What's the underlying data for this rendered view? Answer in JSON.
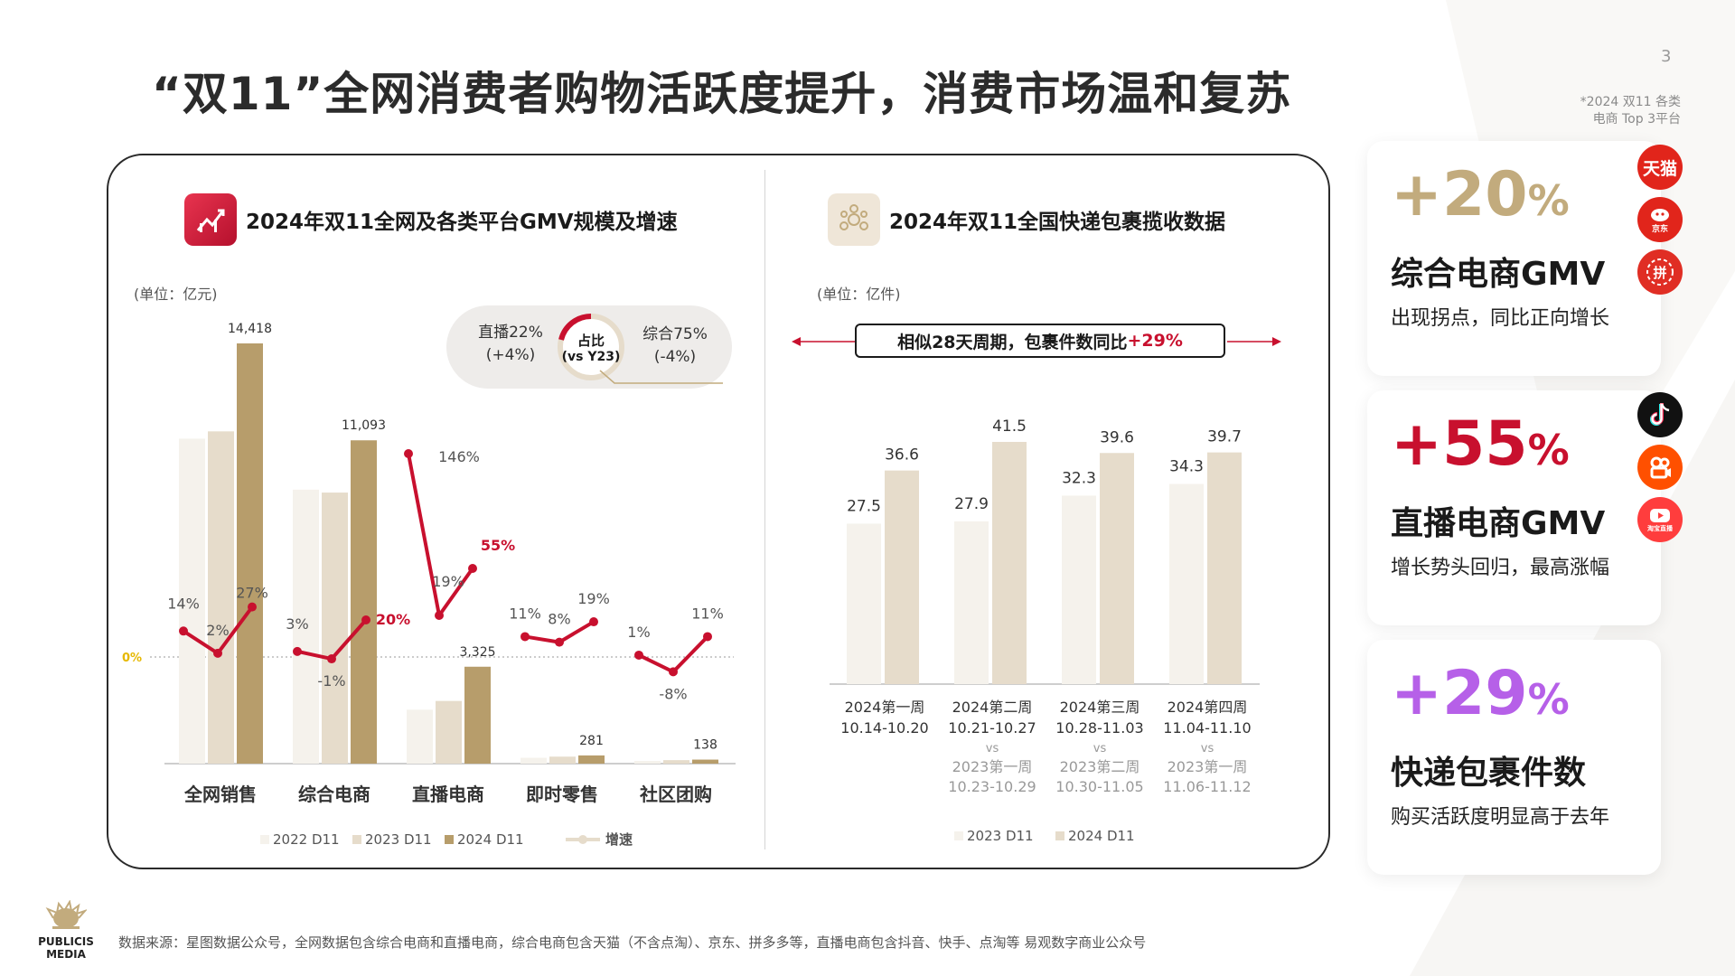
{
  "page": {
    "title": "“双11”全网消费者购物活跃度提升，消费市场温和复苏",
    "page_number": "3",
    "footnote_line1": "*2024 双11 各类",
    "footnote_line2": "电商 Top 3平台"
  },
  "left_panel": {
    "title": "2024年双11全网及各类平台GMV规模及增速",
    "unit": "(单位：亿元)",
    "pill": {
      "left_line1": "直播22%",
      "left_line2": "(+4%)",
      "center_line1": "占比",
      "center_line2": "(vs Y23)",
      "right_line1": "综合75%",
      "right_line2": "(-4%)"
    }
  },
  "right_panel": {
    "title": "2024年双11全国快递包裹揽收数据",
    "unit": "(单位：亿件)",
    "banner_text": "相似28天周期，包裹件数同比",
    "banner_highlight": "+29%"
  },
  "stats": [
    {
      "number": "+20",
      "pct": "%",
      "color": "#c2ab7d",
      "label": "综合电商GMV",
      "desc": "出现拐点，同比正向增长"
    },
    {
      "number": "+55",
      "pct": "%",
      "color": "#c8102e",
      "label": "直播电商GMV",
      "desc": "增长势头回归，最高涨幅"
    },
    {
      "number": "+29",
      "pct": "%",
      "color": "#b660e8",
      "label": "快递包裹件数",
      "desc": "购买活跃度明显高于去年"
    }
  ],
  "logos": {
    "tmall": "天猫",
    "jd": "京东",
    "pdd": "拼",
    "taobao_live": "淘宝直播"
  },
  "brand": {
    "line1": "PUBLICIS",
    "line2": "MEDIA"
  },
  "source": "数据来源：星图数据公众号，全网数据包含综合电商和直播电商，综合电商包含天猫（不含点淘）、京东、拼多多等，直播电商包含抖音、快手、点淘等 易观数字商业公众号",
  "colors": {
    "c2022": "#f5f2ec",
    "c2023": "#e6dccb",
    "c2024": "#b79d6b",
    "growth_line": "#c8102e",
    "zero_label": "#e6b800"
  },
  "chart_data": [
    {
      "type": "bar",
      "title": "2024年双11全网及各类平台GMV规模及增速",
      "unit": "(单位：亿元)",
      "categories": [
        "全网销售",
        "综合电商",
        "直播电商",
        "即时零售",
        "社区团购"
      ],
      "series": [
        {
          "name": "2022 D11",
          "values": [
            11150,
            9400,
            1850,
            200,
            60
          ]
        },
        {
          "name": "2023 D11",
          "values": [
            11400,
            9300,
            2150,
            240,
            120
          ]
        },
        {
          "name": "2024 D11",
          "values": [
            14418,
            11093,
            3325,
            281,
            138
          ]
        }
      ],
      "bar_value_labels": [
        "14,418",
        "11,093",
        "3,325",
        "281",
        "138"
      ],
      "growth_series": {
        "name": "增速",
        "values": [
          [
            14,
            2,
            27
          ],
          [
            3,
            -1,
            20
          ],
          [
            146,
            19,
            55
          ],
          [
            11,
            8,
            19
          ],
          [
            1,
            -8,
            11
          ]
        ],
        "labels": [
          [
            "14%",
            "2%",
            "27%"
          ],
          [
            "3%",
            "-1%",
            "20%"
          ],
          [
            "146%",
            "19%",
            "55%"
          ],
          [
            "11%",
            "8%",
            "19%"
          ],
          [
            "1%",
            "-8%",
            "11%"
          ]
        ],
        "zero_label": "0%"
      },
      "legend": [
        "2022 D11",
        "2023 D11",
        "2024 D11",
        "增速"
      ],
      "legend_position": "bottom"
    },
    {
      "type": "bar",
      "title": "2024年双11全国快递包裹揽收数据",
      "unit": "(单位：亿件)",
      "categories": [
        {
          "week": "2024第一周",
          "range": "10.14-10.20",
          "vs": "",
          "cmp_week": "",
          "cmp_range": ""
        },
        {
          "week": "2024第二周",
          "range": "10.21-10.27",
          "vs": "vs",
          "cmp_week": "2023第一周",
          "cmp_range": "10.23-10.29"
        },
        {
          "week": "2024第三周",
          "range": "10.28-11.03",
          "vs": "vs",
          "cmp_week": "2023第二周",
          "cmp_range": "10.30-11.05"
        },
        {
          "week": "2024第四周",
          "range": "11.04-11.10",
          "vs": "vs",
          "cmp_week": "2023第一周",
          "cmp_range": "11.06-11.12"
        }
      ],
      "series": [
        {
          "name": "2023 D11",
          "values": [
            27.5,
            27.9,
            32.3,
            34.3
          ]
        },
        {
          "name": "2024 D11",
          "values": [
            36.6,
            41.5,
            39.6,
            39.7
          ]
        }
      ],
      "legend": [
        "2023 D11",
        "2024 D11"
      ],
      "legend_position": "bottom"
    }
  ]
}
